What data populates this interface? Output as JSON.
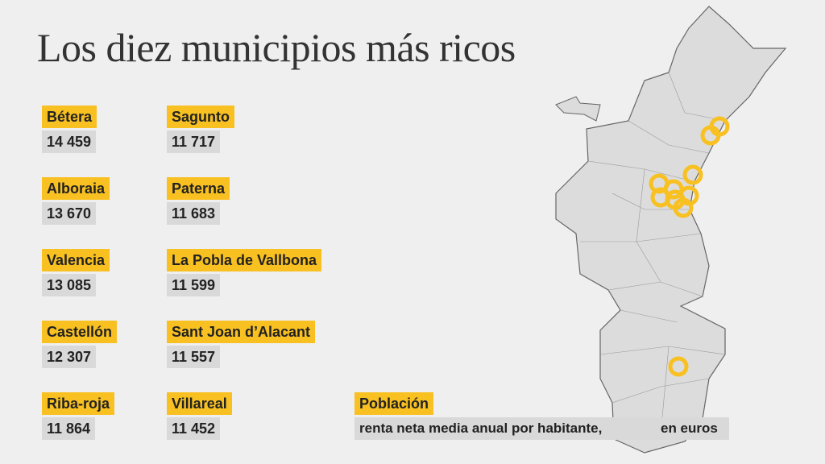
{
  "header": {
    "title": "Los diez municipios más ricos"
  },
  "ranking": [
    {
      "name": "Bétera",
      "value": "14 459"
    },
    {
      "name": "Alboraia",
      "value": "13 670"
    },
    {
      "name": "Valencia",
      "value": "13 085"
    },
    {
      "name": "Castellón",
      "value": "12 307"
    },
    {
      "name": "Riba-roja",
      "value": "11 864"
    },
    {
      "name": "Sagunto",
      "value": "11 717"
    },
    {
      "name": "Paterna",
      "value": "11 683"
    },
    {
      "name": "La Pobla de Vallbona",
      "value": "11 599"
    },
    {
      "name": "Sant Joan d’Alacant",
      "value": "11 557"
    },
    {
      "name": "Villareal",
      "value": "11 452"
    }
  ],
  "legend": {
    "title": "Población",
    "description": "renta neta media anual por habitante,",
    "unit": "en euros"
  }
}
